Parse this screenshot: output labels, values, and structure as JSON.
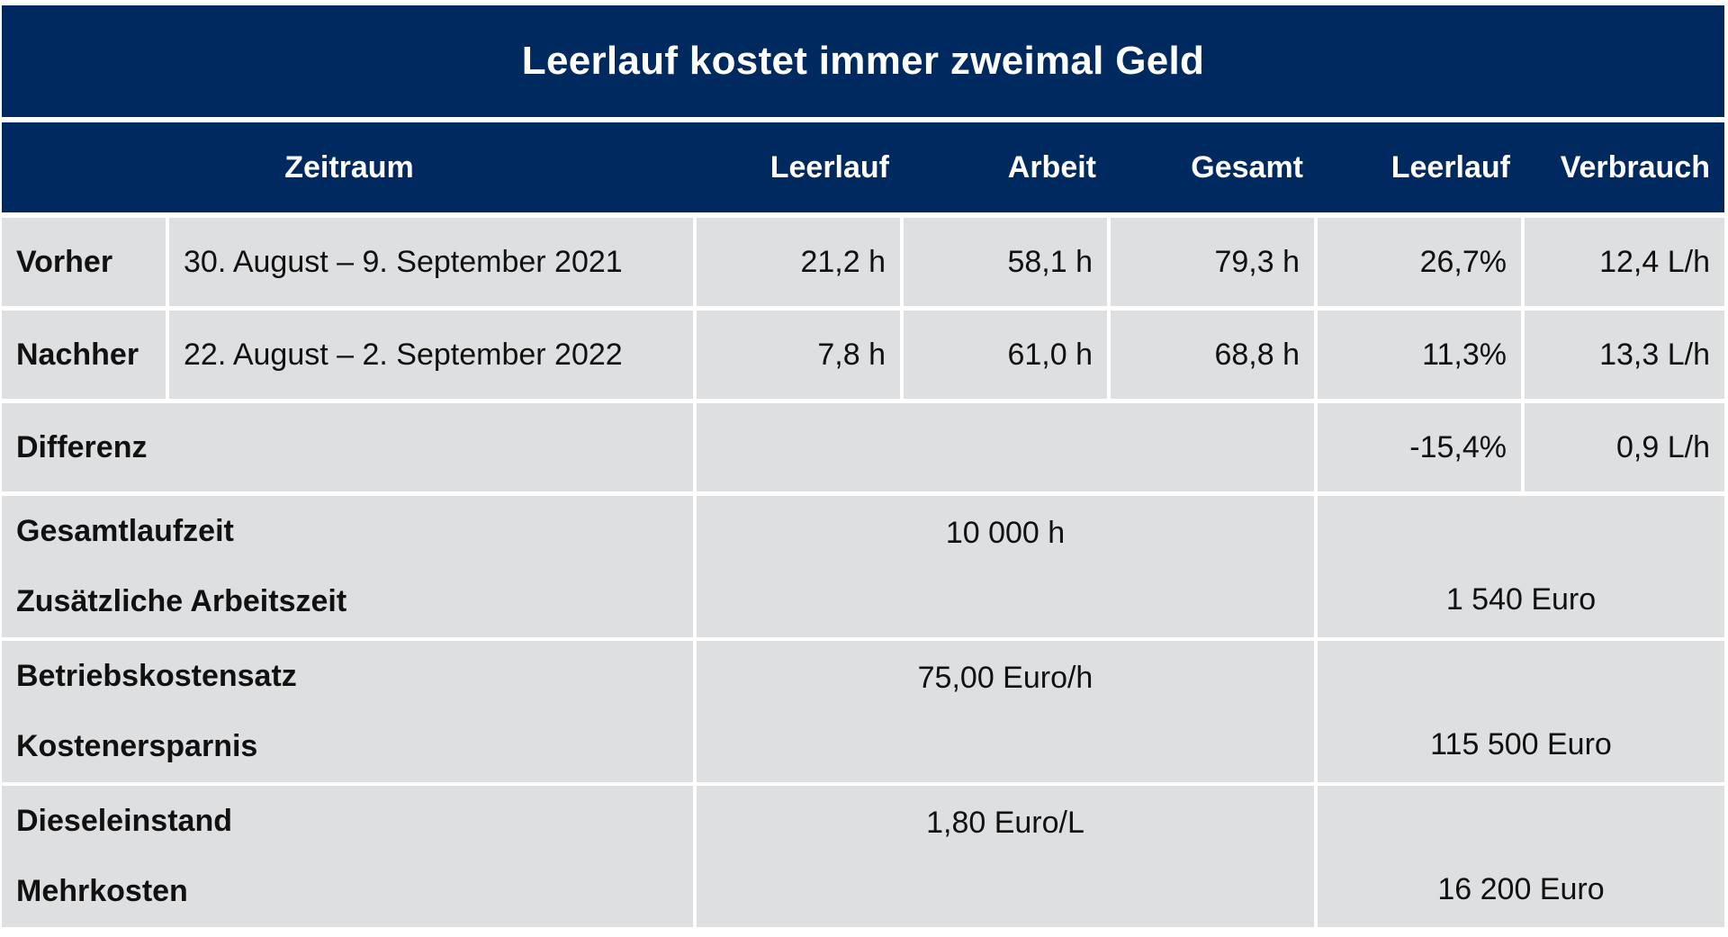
{
  "title": "Leerlauf kostet immer zweimal Geld",
  "headers": {
    "zeitraum": "Zeitraum",
    "leerlauf_h": "Leerlauf",
    "arbeit": "Arbeit",
    "gesamt": "Gesamt",
    "leerlauf_pct": "Leerlauf",
    "verbrauch": "Verbrauch"
  },
  "rows": [
    {
      "label": "Vorher",
      "zeitraum": "30. August – 9. September 2021",
      "leerlauf": "21,2 h",
      "arbeit": "58,1 h",
      "gesamt": "79,3 h",
      "leerlauf_pct": "26,7%",
      "verbrauch": "12,4 L/h"
    },
    {
      "label": "Nachher",
      "zeitraum": "22. August – 2. September 2022",
      "leerlauf": "7,8 h",
      "arbeit": "61,0 h",
      "gesamt": "68,8 h",
      "leerlauf_pct": "11,3%",
      "verbrauch": "13,3 L/h"
    }
  ],
  "differenz": {
    "label": "Differenz",
    "leerlauf_pct": "-15,4%",
    "verbrauch": "0,9 L/h"
  },
  "calc": [
    {
      "label_top": "Gesamtlaufzeit",
      "value_top": "10 000 h",
      "label_bottom": "Zusätzliche Arbeitszeit",
      "result": "1 540 Euro"
    },
    {
      "label_top": "Betriebskostensatz",
      "value_top": "75,00 Euro/h",
      "label_bottom": "Kostenersparnis",
      "result": "115 500 Euro"
    },
    {
      "label_top": "Dieseleinstand",
      "value_top": "1,80 Euro/L",
      "label_bottom": "Mehrkosten",
      "result": "16 200 Euro"
    }
  ]
}
